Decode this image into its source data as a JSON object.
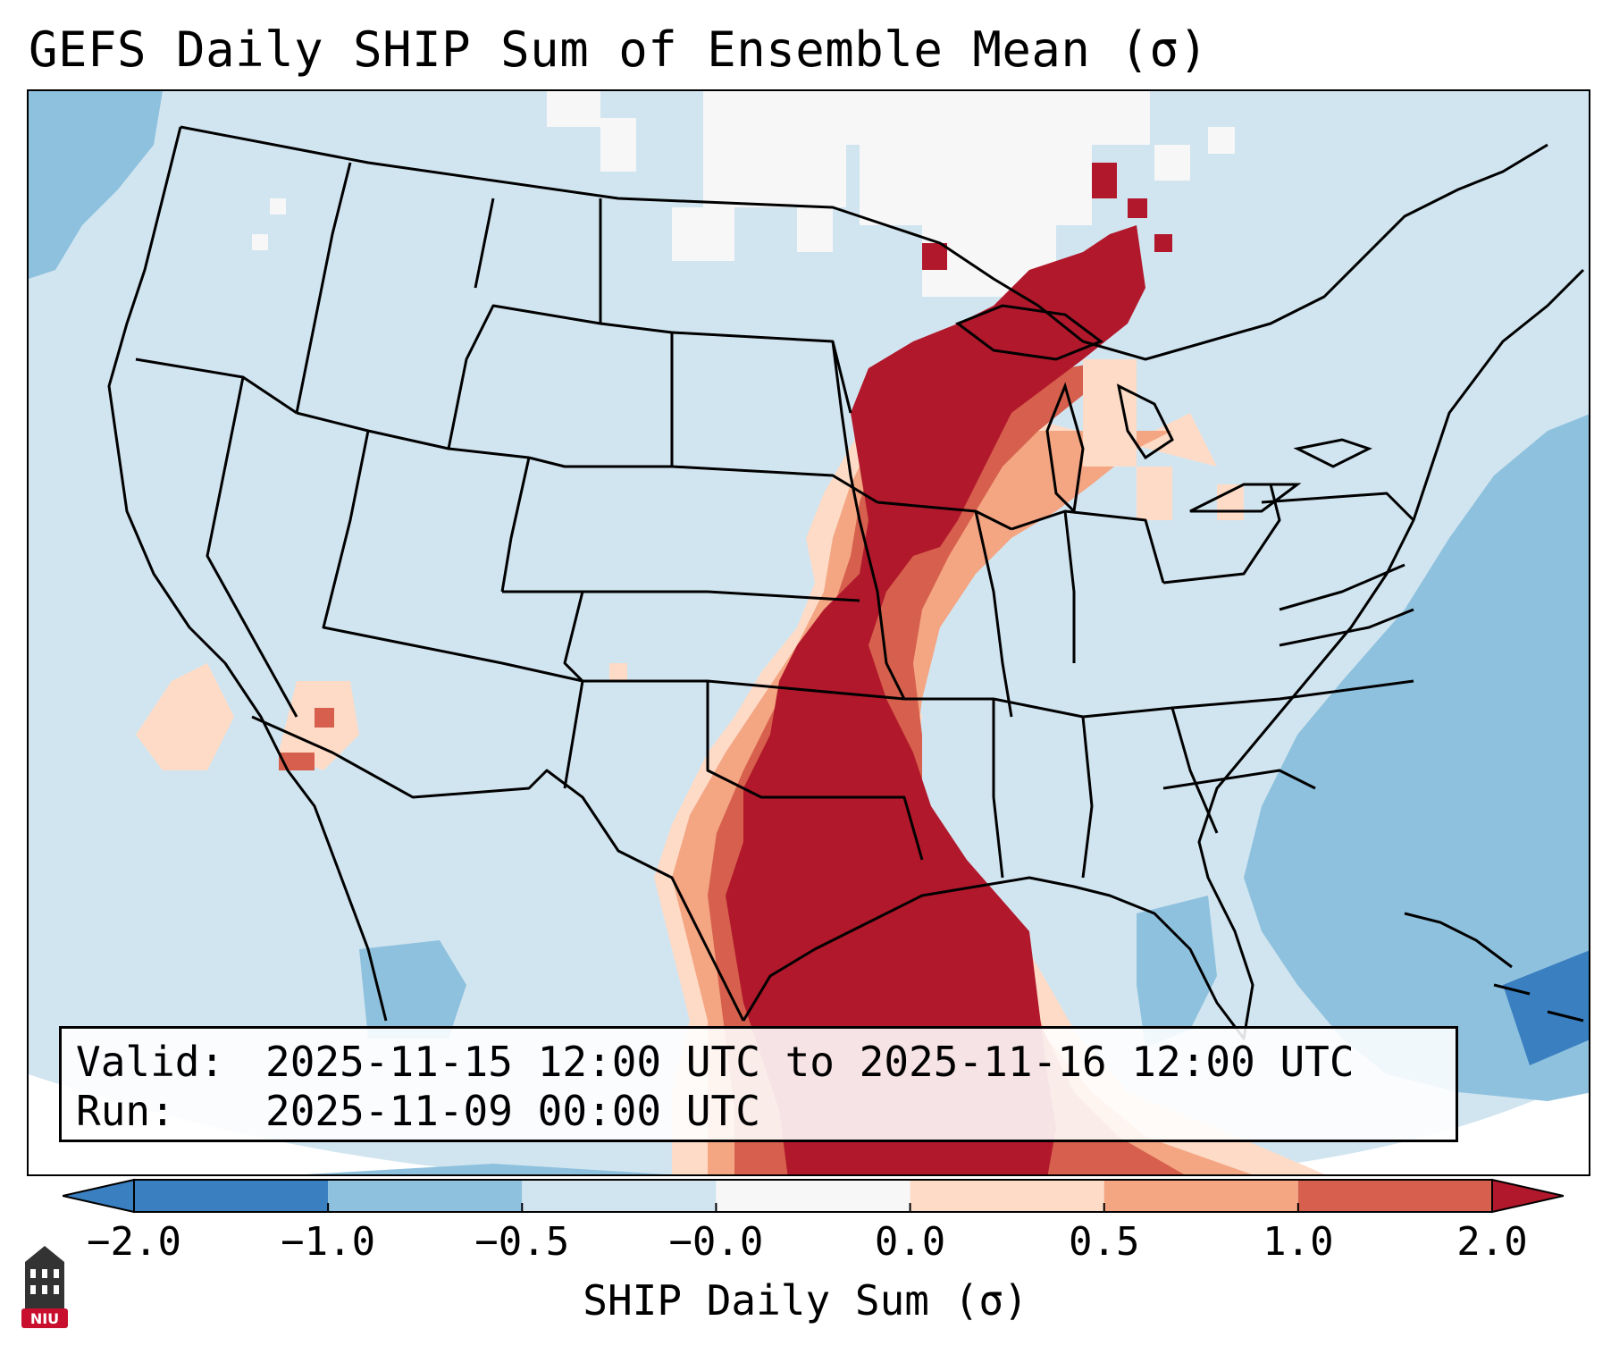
{
  "title": "GEFS Daily SHIP Sum of Ensemble Mean (σ)",
  "info": {
    "valid_label": "Valid:",
    "valid_value": "2025-11-15 12:00 UTC to 2025-11-16 12:00 UTC",
    "run_label": "Run:",
    "run_value": "2025-11-09 00:00 UTC"
  },
  "colorbar": {
    "label": "SHIP Daily Sum (σ)",
    "ticks": [
      "−2.0",
      "−1.0",
      "−0.5",
      "−0.0",
      "0.0",
      "0.5",
      "1.0",
      "2.0"
    ],
    "colors": [
      "#3a7fc0",
      "#8ec1de",
      "#d1e5f0",
      "#f7f7f7",
      "#fddbc7",
      "#f4a582",
      "#d6604d",
      "#b2182b"
    ]
  },
  "map": {
    "region": "Contiguous United States",
    "colors": {
      "ocean_low": "#8ec1de",
      "ocean_deep": "#3a7fc0",
      "land_base": "#d1e5f0",
      "neutral": "#f7f7f7",
      "pos_light": "#fddbc7",
      "pos_mid": "#f4a582",
      "pos_high": "#d6604d",
      "pos_max": "#b2182b"
    }
  },
  "logo": {
    "text": "NIU",
    "icon": "niu-tower-logo-icon"
  }
}
